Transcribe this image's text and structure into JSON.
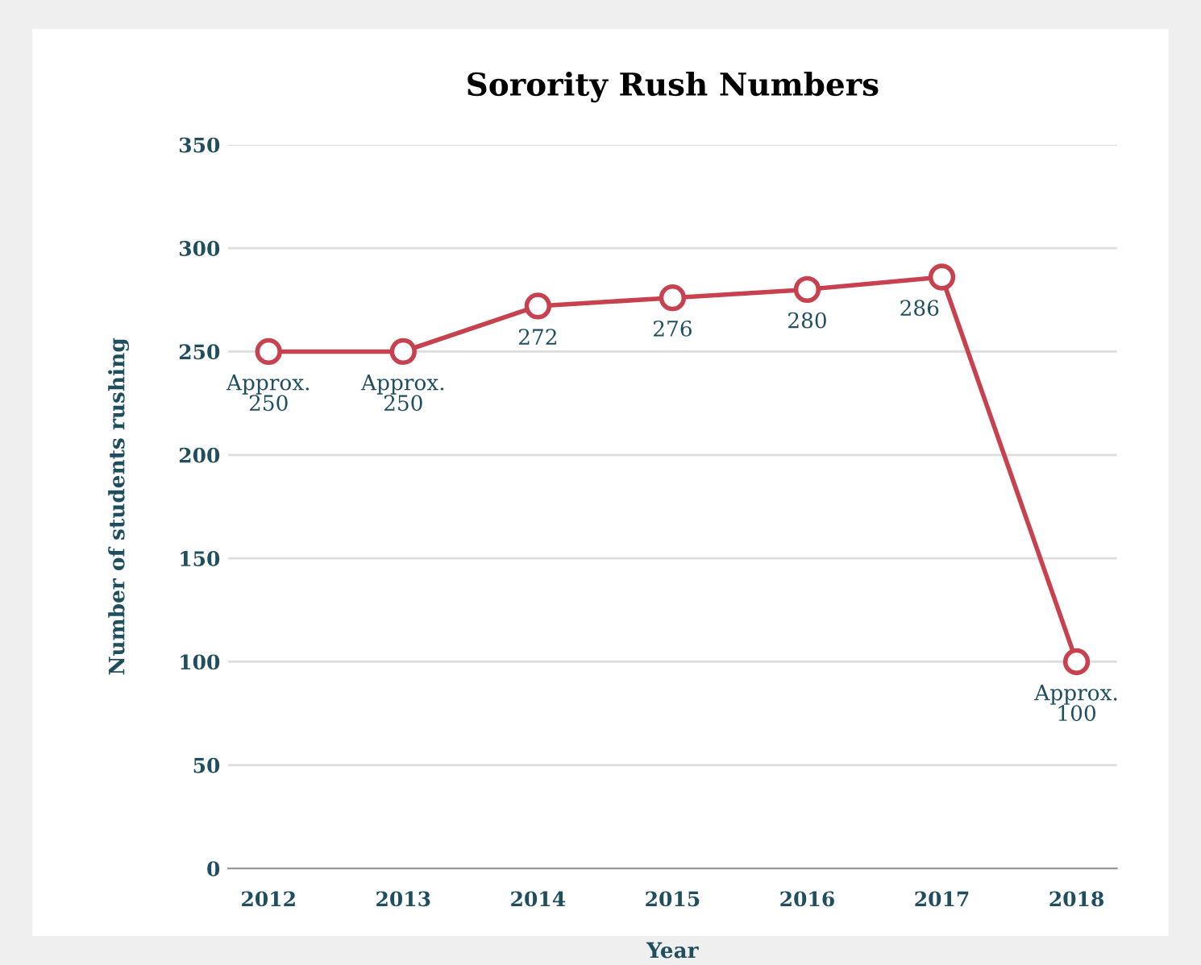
{
  "chart_data": {
    "type": "line",
    "title": "Sorority Rush Numbers",
    "xlabel": "Year",
    "ylabel": "Number of students rushing",
    "categories": [
      "2012",
      "2013",
      "2014",
      "2015",
      "2016",
      "2017",
      "2018"
    ],
    "series": [
      {
        "color": "#c8414f",
        "values": [
          250,
          250,
          272,
          276,
          280,
          286,
          100
        ],
        "value_labels": [
          "Approx.\n250",
          "Approx.\n250",
          "272",
          "276",
          "280",
          "286",
          "Approx.\n100"
        ]
      }
    ],
    "ylim": [
      0,
      350
    ],
    "yticks": [
      0,
      50,
      100,
      150,
      200,
      250,
      300,
      350
    ],
    "grid": "y",
    "marker": "circle",
    "line_style": "solid",
    "legend": false
  }
}
